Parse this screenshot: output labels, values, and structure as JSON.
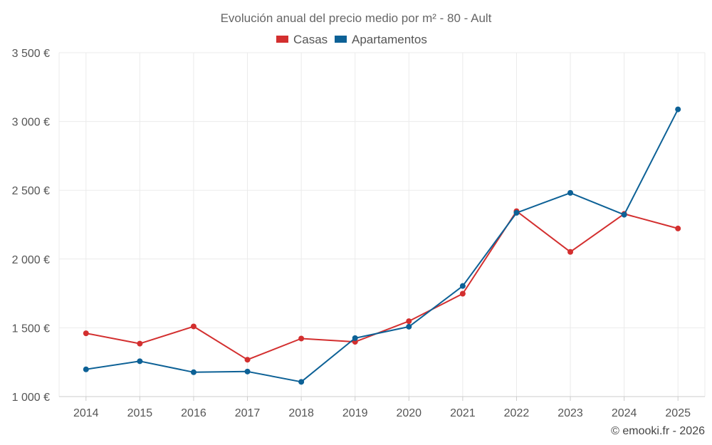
{
  "chart_data": {
    "type": "line",
    "title": "Evolución anual del precio medio por m² - 80 - Ault",
    "categories": [
      "2014",
      "2015",
      "2016",
      "2017",
      "2018",
      "2019",
      "2020",
      "2021",
      "2022",
      "2023",
      "2024",
      "2025"
    ],
    "series": [
      {
        "name": "Casas",
        "color": "#d32f2f",
        "values": [
          1460,
          1385,
          1510,
          1268,
          1422,
          1398,
          1548,
          1748,
          2348,
          2052,
          2328,
          2222
        ]
      },
      {
        "name": "Apartamentos",
        "color": "#0d6196",
        "values": [
          1198,
          1257,
          1177,
          1182,
          1107,
          1425,
          1508,
          1804,
          2336,
          2481,
          2322,
          3088
        ]
      }
    ],
    "ylim": [
      1000,
      3500
    ],
    "yticks": [
      1000,
      1500,
      2000,
      2500,
      3000,
      3500
    ],
    "ytick_labels": [
      "1 000 €",
      "1 500 €",
      "2 000 €",
      "2 500 €",
      "3 000 €",
      "3 500 €"
    ],
    "xlabel": "",
    "ylabel": "",
    "grid": true,
    "legend_position": "top-center"
  },
  "credit": "© emooki.fr - 2026"
}
